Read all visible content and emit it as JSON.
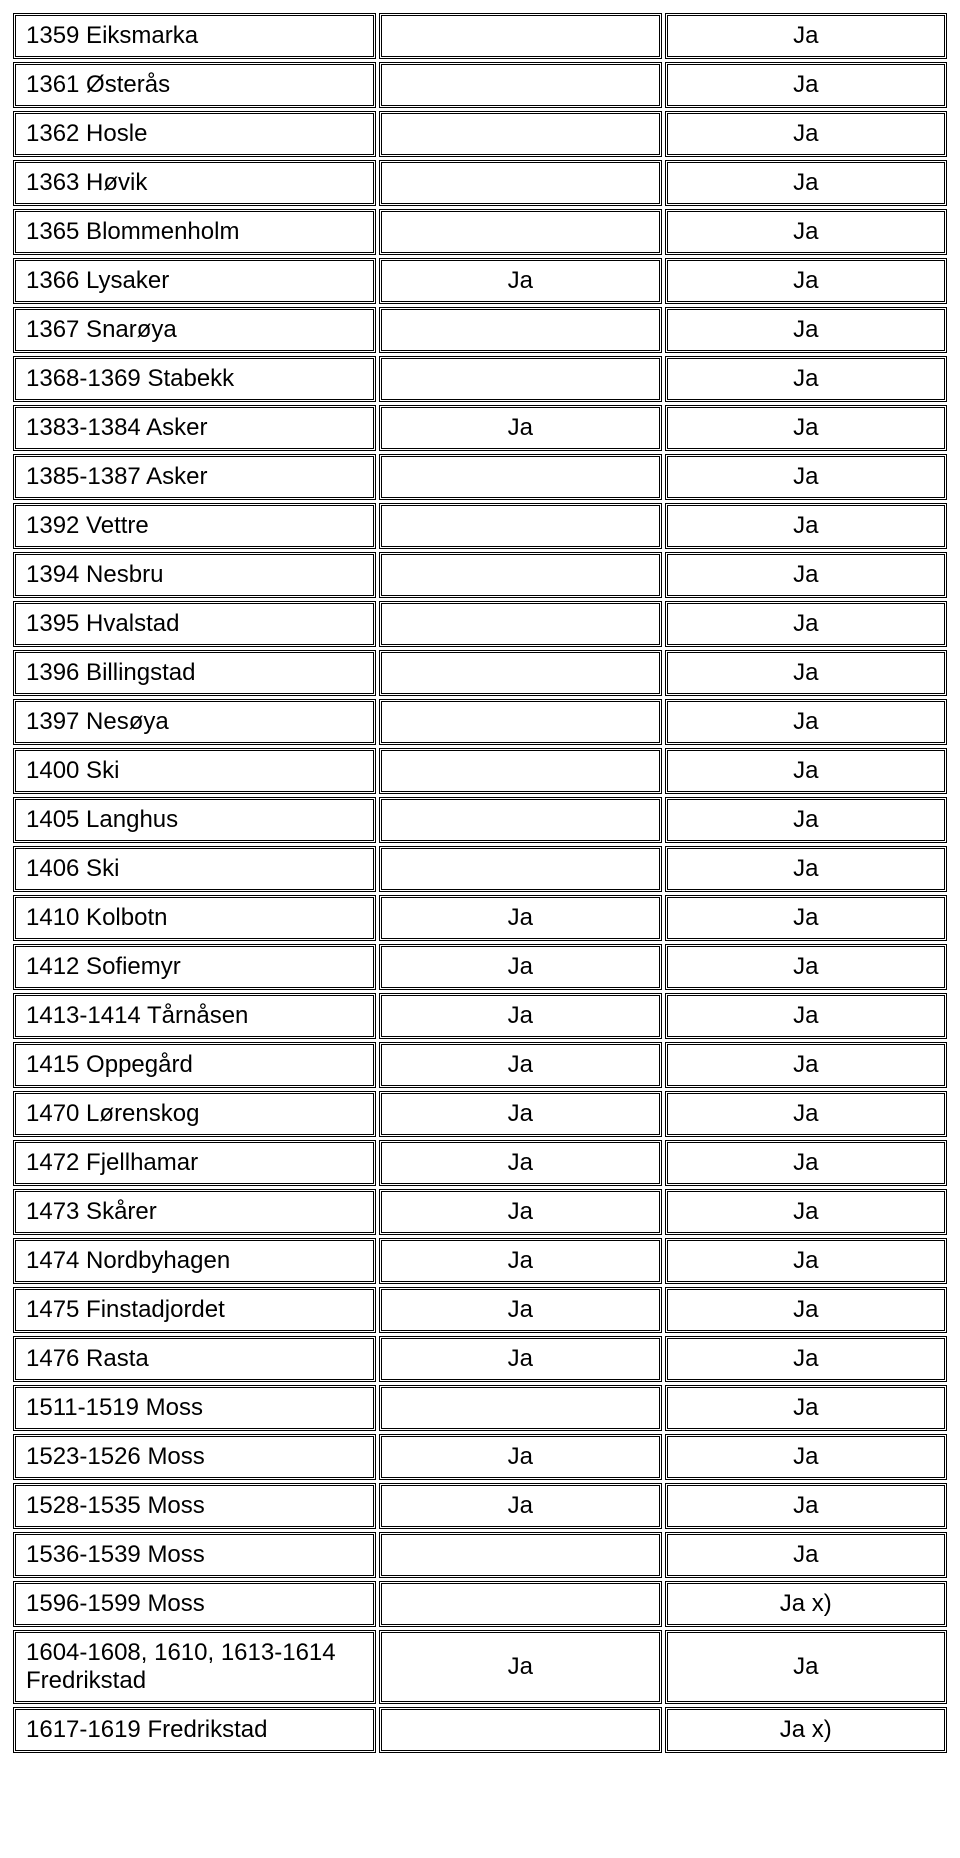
{
  "table": {
    "rows": [
      {
        "c1": "1359 Eiksmarka",
        "c2": "",
        "c3": "Ja"
      },
      {
        "c1": "1361 Østerås",
        "c2": "",
        "c3": "Ja"
      },
      {
        "c1": "1362 Hosle",
        "c2": "",
        "c3": "Ja"
      },
      {
        "c1": "1363 Høvik",
        "c2": "",
        "c3": "Ja"
      },
      {
        "c1": "1365 Blommenholm",
        "c2": "",
        "c3": "Ja"
      },
      {
        "c1": "1366 Lysaker",
        "c2": "Ja",
        "c3": "Ja"
      },
      {
        "c1": "1367 Snarøya",
        "c2": "",
        "c3": "Ja"
      },
      {
        "c1": "1368-1369 Stabekk",
        "c2": "",
        "c3": "Ja"
      },
      {
        "c1": "1383-1384 Asker",
        "c2": "Ja",
        "c3": "Ja"
      },
      {
        "c1": "1385-1387 Asker",
        "c2": "",
        "c3": "Ja"
      },
      {
        "c1": "1392 Vettre",
        "c2": "",
        "c3": "Ja"
      },
      {
        "c1": "1394 Nesbru",
        "c2": "",
        "c3": "Ja"
      },
      {
        "c1": "1395 Hvalstad",
        "c2": "",
        "c3": "Ja"
      },
      {
        "c1": "1396 Billingstad",
        "c2": "",
        "c3": "Ja"
      },
      {
        "c1": "1397 Nesøya",
        "c2": "",
        "c3": "Ja"
      },
      {
        "c1": "1400 Ski",
        "c2": "",
        "c3": "Ja"
      },
      {
        "c1": "1405 Langhus",
        "c2": "",
        "c3": "Ja"
      },
      {
        "c1": "1406 Ski",
        "c2": "",
        "c3": "Ja"
      },
      {
        "c1": "1410 Kolbotn",
        "c2": "Ja",
        "c3": "Ja"
      },
      {
        "c1": "1412 Sofiemyr",
        "c2": "Ja",
        "c3": "Ja"
      },
      {
        "c1": "1413-1414 Tårnåsen",
        "c2": "Ja",
        "c3": "Ja"
      },
      {
        "c1": "1415 Oppegård",
        "c2": "Ja",
        "c3": "Ja"
      },
      {
        "c1": "1470 Lørenskog",
        "c2": "Ja",
        "c3": "Ja"
      },
      {
        "c1": "1472 Fjellhamar",
        "c2": "Ja",
        "c3": "Ja"
      },
      {
        "c1": "1473 Skårer",
        "c2": "Ja",
        "c3": "Ja"
      },
      {
        "c1": "1474 Nordbyhagen",
        "c2": "Ja",
        "c3": "Ja"
      },
      {
        "c1": "1475 Finstadjordet",
        "c2": "Ja",
        "c3": "Ja"
      },
      {
        "c1": "1476 Rasta",
        "c2": "Ja",
        "c3": "Ja"
      },
      {
        "c1": "1511-1519 Moss",
        "c2": "",
        "c3": "Ja"
      },
      {
        "c1": "1523-1526 Moss",
        "c2": "Ja",
        "c3": "Ja"
      },
      {
        "c1": "1528-1535 Moss",
        "c2": "Ja",
        "c3": "Ja"
      },
      {
        "c1": "1536-1539 Moss",
        "c2": "",
        "c3": "Ja"
      },
      {
        "c1": "1596-1599 Moss",
        "c2": "",
        "c3": "Ja x)"
      },
      {
        "c1": "1604-1608, 1610, 1613-1614 Fredrikstad",
        "c2": "Ja",
        "c3": "Ja"
      },
      {
        "c1": "1617-1619 Fredrikstad",
        "c2": "",
        "c3": "Ja x)"
      }
    ]
  }
}
